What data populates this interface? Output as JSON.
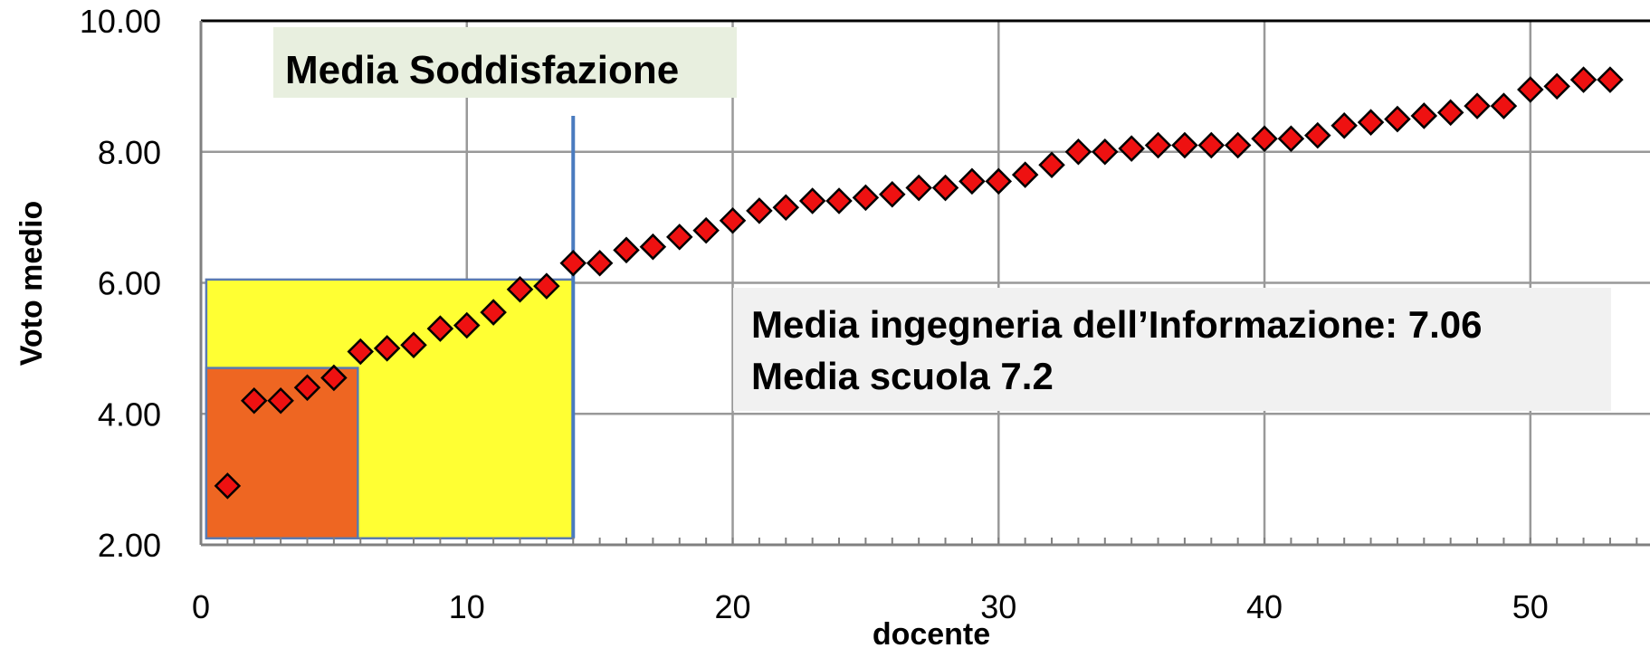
{
  "chart_data": {
    "type": "scatter",
    "xlabel": "docente",
    "ylabel": "Voto medio",
    "xlim": [
      0,
      54.5
    ],
    "ylim": [
      2,
      10
    ],
    "x_ticks": [
      "0",
      "10",
      "20",
      "30",
      "40",
      "50"
    ],
    "y_ticks": [
      "2.00",
      "4.00",
      "6.00",
      "8.00",
      "10.00"
    ],
    "grid": true,
    "marker": "diamond",
    "series": [
      {
        "color": "#ee1111",
        "points": [
          [
            1,
            2.9
          ],
          [
            2,
            4.2
          ],
          [
            3,
            4.2
          ],
          [
            4,
            4.4
          ],
          [
            5,
            4.55
          ],
          [
            6,
            4.95
          ],
          [
            7,
            5.0
          ],
          [
            8,
            5.05
          ],
          [
            9,
            5.3
          ],
          [
            10,
            5.35
          ],
          [
            11,
            5.55
          ],
          [
            12,
            5.9
          ],
          [
            13,
            5.95
          ],
          [
            14,
            6.3
          ],
          [
            15,
            6.3
          ],
          [
            16,
            6.5
          ],
          [
            17,
            6.55
          ],
          [
            18,
            6.7
          ],
          [
            19,
            6.8
          ],
          [
            20,
            6.95
          ],
          [
            21,
            7.1
          ],
          [
            22,
            7.15
          ],
          [
            23,
            7.25
          ],
          [
            24,
            7.25
          ],
          [
            25,
            7.3
          ],
          [
            26,
            7.35
          ],
          [
            27,
            7.45
          ],
          [
            28,
            7.45
          ],
          [
            29,
            7.55
          ],
          [
            30,
            7.55
          ],
          [
            31,
            7.65
          ],
          [
            32,
            7.8
          ],
          [
            33,
            8.0
          ],
          [
            34,
            8.0
          ],
          [
            35,
            8.05
          ],
          [
            36,
            8.1
          ],
          [
            37,
            8.1
          ],
          [
            38,
            8.1
          ],
          [
            39,
            8.1
          ],
          [
            40,
            8.2
          ],
          [
            41,
            8.2
          ],
          [
            42,
            8.25
          ],
          [
            43,
            8.4
          ],
          [
            44,
            8.45
          ],
          [
            45,
            8.5
          ],
          [
            46,
            8.55
          ],
          [
            47,
            8.6
          ],
          [
            48,
            8.7
          ],
          [
            49,
            8.7
          ],
          [
            50,
            8.95
          ],
          [
            51,
            9.0
          ],
          [
            52,
            9.1
          ],
          [
            53,
            9.1
          ]
        ]
      }
    ],
    "highlight_regions": [
      {
        "x": [
          0.2,
          14
        ],
        "y": [
          2.1,
          6.05
        ],
        "color": "#ffff33"
      },
      {
        "x": [
          0.2,
          5.9
        ],
        "y": [
          2.1,
          4.7
        ],
        "color": "#ee6622"
      }
    ],
    "vertical_line": {
      "x": 14,
      "y": [
        2.1,
        8.55
      ],
      "color": "#4a7bbf"
    },
    "annotations": {
      "satisfaction_label": "Media Soddisfazione",
      "info_line1": "Media ingegneria dell’Informazione: 7.06",
      "info_line2": "Media scuola 7.2"
    },
    "colors": {
      "grid": "#999999",
      "axis": "#000000",
      "label_box_green": "#e8efdf",
      "label_box_gray": "#f1f1f1"
    }
  }
}
